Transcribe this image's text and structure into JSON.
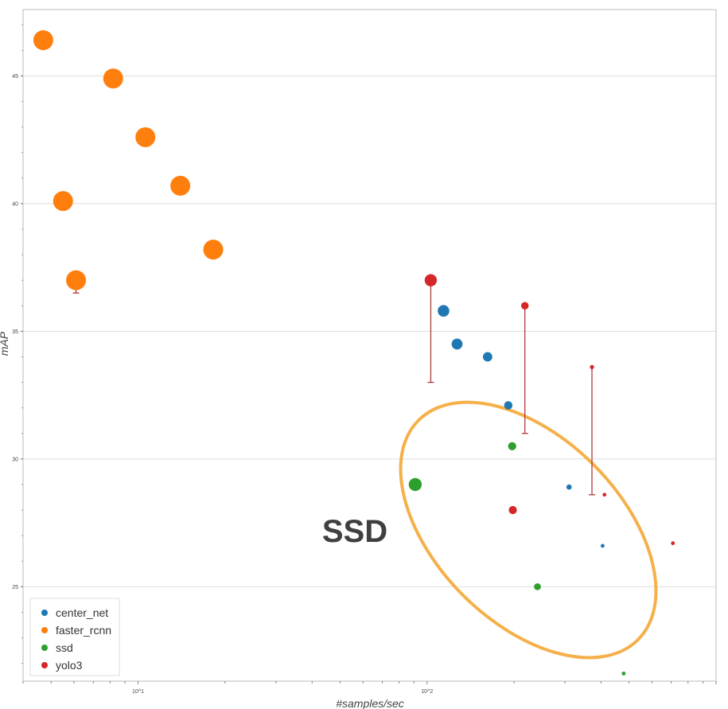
{
  "chart_data": {
    "type": "scatter",
    "xlabel": "#samples/sec",
    "ylabel": "mAP",
    "xscale": "log",
    "xlim": [
      4,
      1000
    ],
    "ylim": [
      21.3,
      47.6
    ],
    "grid": "horizontal",
    "legend_placement": "bottom-left",
    "x_tick_labels": [
      {
        "value": 10,
        "label": "10^1"
      },
      {
        "value": 100,
        "label": "10^2"
      }
    ],
    "y_ticks": [
      25,
      30,
      35,
      40,
      45
    ],
    "series": [
      {
        "name": "center_net",
        "color": "#1f77b4",
        "points": [
          {
            "x": 114,
            "y": 35.8
          },
          {
            "x": 127,
            "y": 34.5
          },
          {
            "x": 162,
            "y": 34.0
          },
          {
            "x": 191,
            "y": 32.1
          },
          {
            "x": 310,
            "y": 28.9
          },
          {
            "x": 405,
            "y": 26.6
          }
        ]
      },
      {
        "name": "faster_rcnn",
        "color": "#ff7f0e",
        "points": [
          {
            "x": 4.7,
            "y": 46.4
          },
          {
            "x": 8.2,
            "y": 44.9
          },
          {
            "x": 10.6,
            "y": 42.6
          },
          {
            "x": 14.0,
            "y": 40.7
          },
          {
            "x": 5.5,
            "y": 40.1
          },
          {
            "x": 18.2,
            "y": 38.2
          },
          {
            "x": 6.1,
            "y": 37.0
          }
        ]
      },
      {
        "name": "ssd",
        "color": "#2ca02c",
        "points": [
          {
            "x": 91,
            "y": 29.0
          },
          {
            "x": 197,
            "y": 30.5
          },
          {
            "x": 241,
            "y": 25.0
          },
          {
            "x": 479,
            "y": 21.6
          }
        ]
      },
      {
        "name": "yolo3",
        "color": "#d62728",
        "points": [
          {
            "x": 103,
            "y": 37.0
          },
          {
            "x": 218,
            "y": 36.0
          },
          {
            "x": 198,
            "y": 28.0
          },
          {
            "x": 372,
            "y": 33.6
          },
          {
            "x": 411,
            "y": 28.6
          },
          {
            "x": 709,
            "y": 26.7
          }
        ]
      }
    ],
    "error_bars": [
      {
        "x": 103,
        "y_high": 37.0,
        "y_low": 33.0
      },
      {
        "x": 218,
        "y_high": 36.0,
        "y_low": 31.0
      },
      {
        "x": 372,
        "y_high": 33.6,
        "y_low": 28.6
      },
      {
        "x": 6.1,
        "y_high": 37.0,
        "y_low": 36.5
      }
    ],
    "annotations": [
      {
        "text": "SSD",
        "x": 52,
        "y": 26.5,
        "shape": "ellipse",
        "color": "#f5b04a"
      }
    ]
  }
}
